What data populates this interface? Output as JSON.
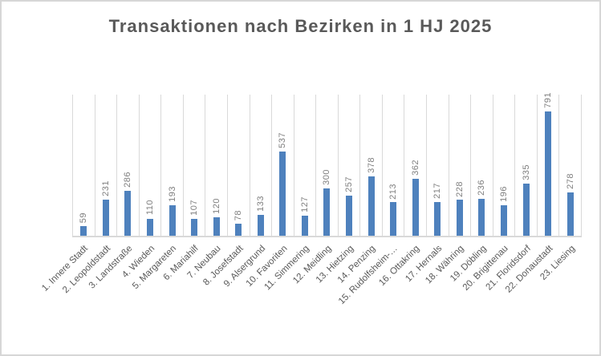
{
  "chart_data": {
    "type": "bar",
    "title": "Transaktionen nach Bezirken in 1 HJ 2025",
    "categories": [
      "1. Innere Stadt",
      "2. Leopoldstadt",
      "3. Landstraße",
      "4. Wieden",
      "5. Margareten",
      "6. Mariahilf",
      "7. Neubau",
      "8. Josefstadt",
      "9. Alsergrund",
      "10. Favoriten",
      "11. Simmering",
      "12. Meidling",
      "13. Hietzing",
      "14. Penzing",
      "15. Rudolfsheim-…",
      "16. Ottakring",
      "17. Hernals",
      "18. Währing",
      "19. Döbling",
      "20. Brigittenau",
      "21. Floridsdorf",
      "22. Donaustadt",
      "23. Liesing"
    ],
    "values": [
      59,
      231,
      286,
      110,
      193,
      107,
      120,
      78,
      133,
      537,
      127,
      300,
      257,
      378,
      213,
      362,
      217,
      228,
      236,
      196,
      335,
      791,
      278
    ],
    "xlabel": "",
    "ylabel": "",
    "ylim": [
      0,
      900
    ],
    "legend": "none",
    "grid": "vertical-category-gridlines",
    "value_labels_visible": true,
    "value_label_rotation_deg": 90,
    "category_label_rotation_deg": 45,
    "colors": {
      "bar": "#4e81bd",
      "gridline": "#d9d9d9",
      "axis_line": "#d9d9d9",
      "title_text": "#595959",
      "value_label_text": "#7f7f7f",
      "category_label_text": "#595959",
      "frame_border": "#d6d6d6",
      "background": "#ffffff"
    }
  }
}
